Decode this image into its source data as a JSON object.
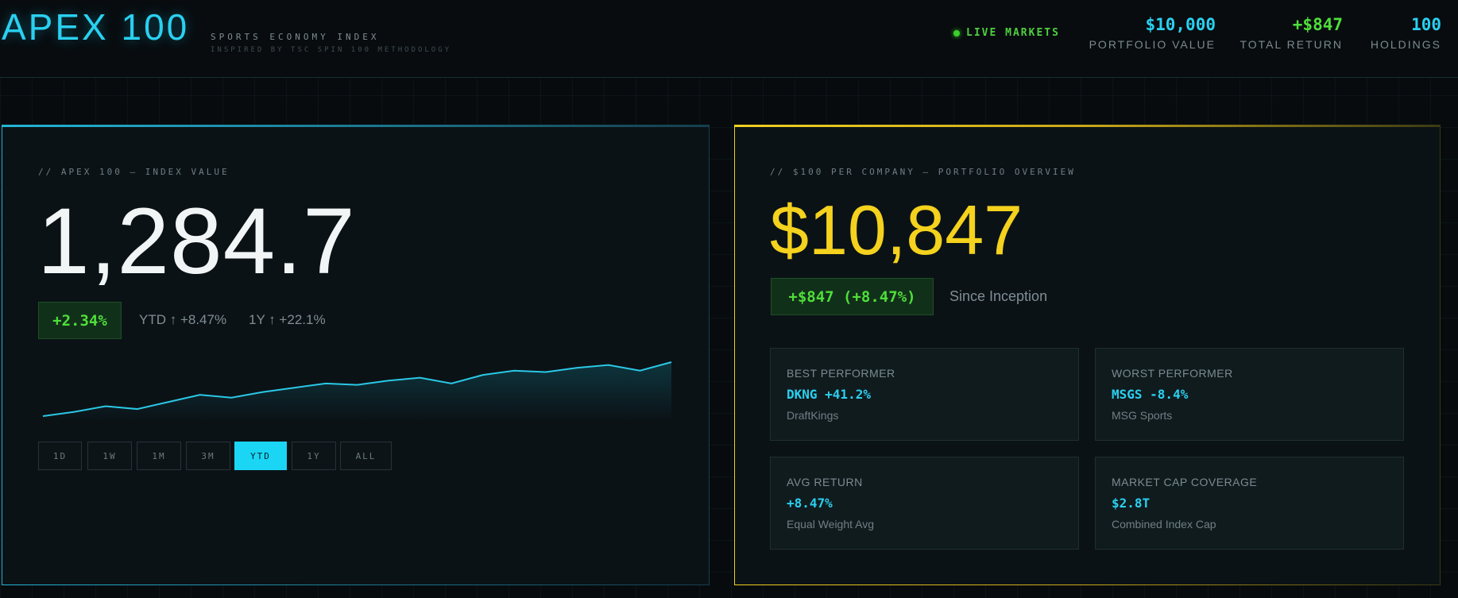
{
  "header": {
    "title": "APEX 100",
    "subtitle": "SPORTS ECONOMY INDEX",
    "tagline": "INSPIRED BY TSC SPIN 100 METHODOLOGY",
    "live_label": "LIVE MARKETS",
    "stats": [
      {
        "value": "$10,000",
        "label": "PORTFOLIO VALUE",
        "color": "#2ad0f0"
      },
      {
        "value": "+$847",
        "label": "TOTAL RETURN",
        "color": "#4fde3a"
      },
      {
        "value": "100",
        "label": "HOLDINGS",
        "color": "#2ad0f0"
      }
    ]
  },
  "index_panel": {
    "caption": "// APEX 100 — INDEX VALUE",
    "value": "1,284.7",
    "change": "+2.34%",
    "ytd": "YTD ↑ +8.47%",
    "one_year": "1Y ↑ +22.1%",
    "ranges": [
      "1D",
      "1W",
      "1M",
      "3M",
      "YTD",
      "1Y",
      "ALL"
    ],
    "active_range": "YTD",
    "accent": "#1ad6f4"
  },
  "portfolio_panel": {
    "caption": "// $100 PER COMPANY — PORTFOLIO OVERVIEW",
    "value": "$10,847",
    "since_change": "+$847 (+8.47%)",
    "since_label": "Since Inception",
    "accent": "#f4d21d",
    "cards": [
      {
        "label": "BEST PERFORMER",
        "value": "DKNG +41.2%",
        "sub": "DraftKings"
      },
      {
        "label": "WORST PERFORMER",
        "value": "MSGS -8.4%",
        "sub": "MSG Sports"
      },
      {
        "label": "AVG RETURN",
        "value": "+8.47%",
        "sub": "Equal Weight Avg"
      },
      {
        "label": "MARKET CAP COVERAGE",
        "value": "$2.8T",
        "sub": "Combined Index Cap"
      }
    ]
  },
  "chart_data": {
    "type": "line",
    "title": "",
    "xlabel": "",
    "ylabel": "",
    "series": [
      {
        "values": [
          10,
          13,
          17,
          15,
          20,
          25,
          23,
          27,
          30,
          33,
          32,
          35,
          37,
          33,
          39,
          42,
          41,
          44,
          46,
          42,
          48
        ]
      }
    ]
  }
}
